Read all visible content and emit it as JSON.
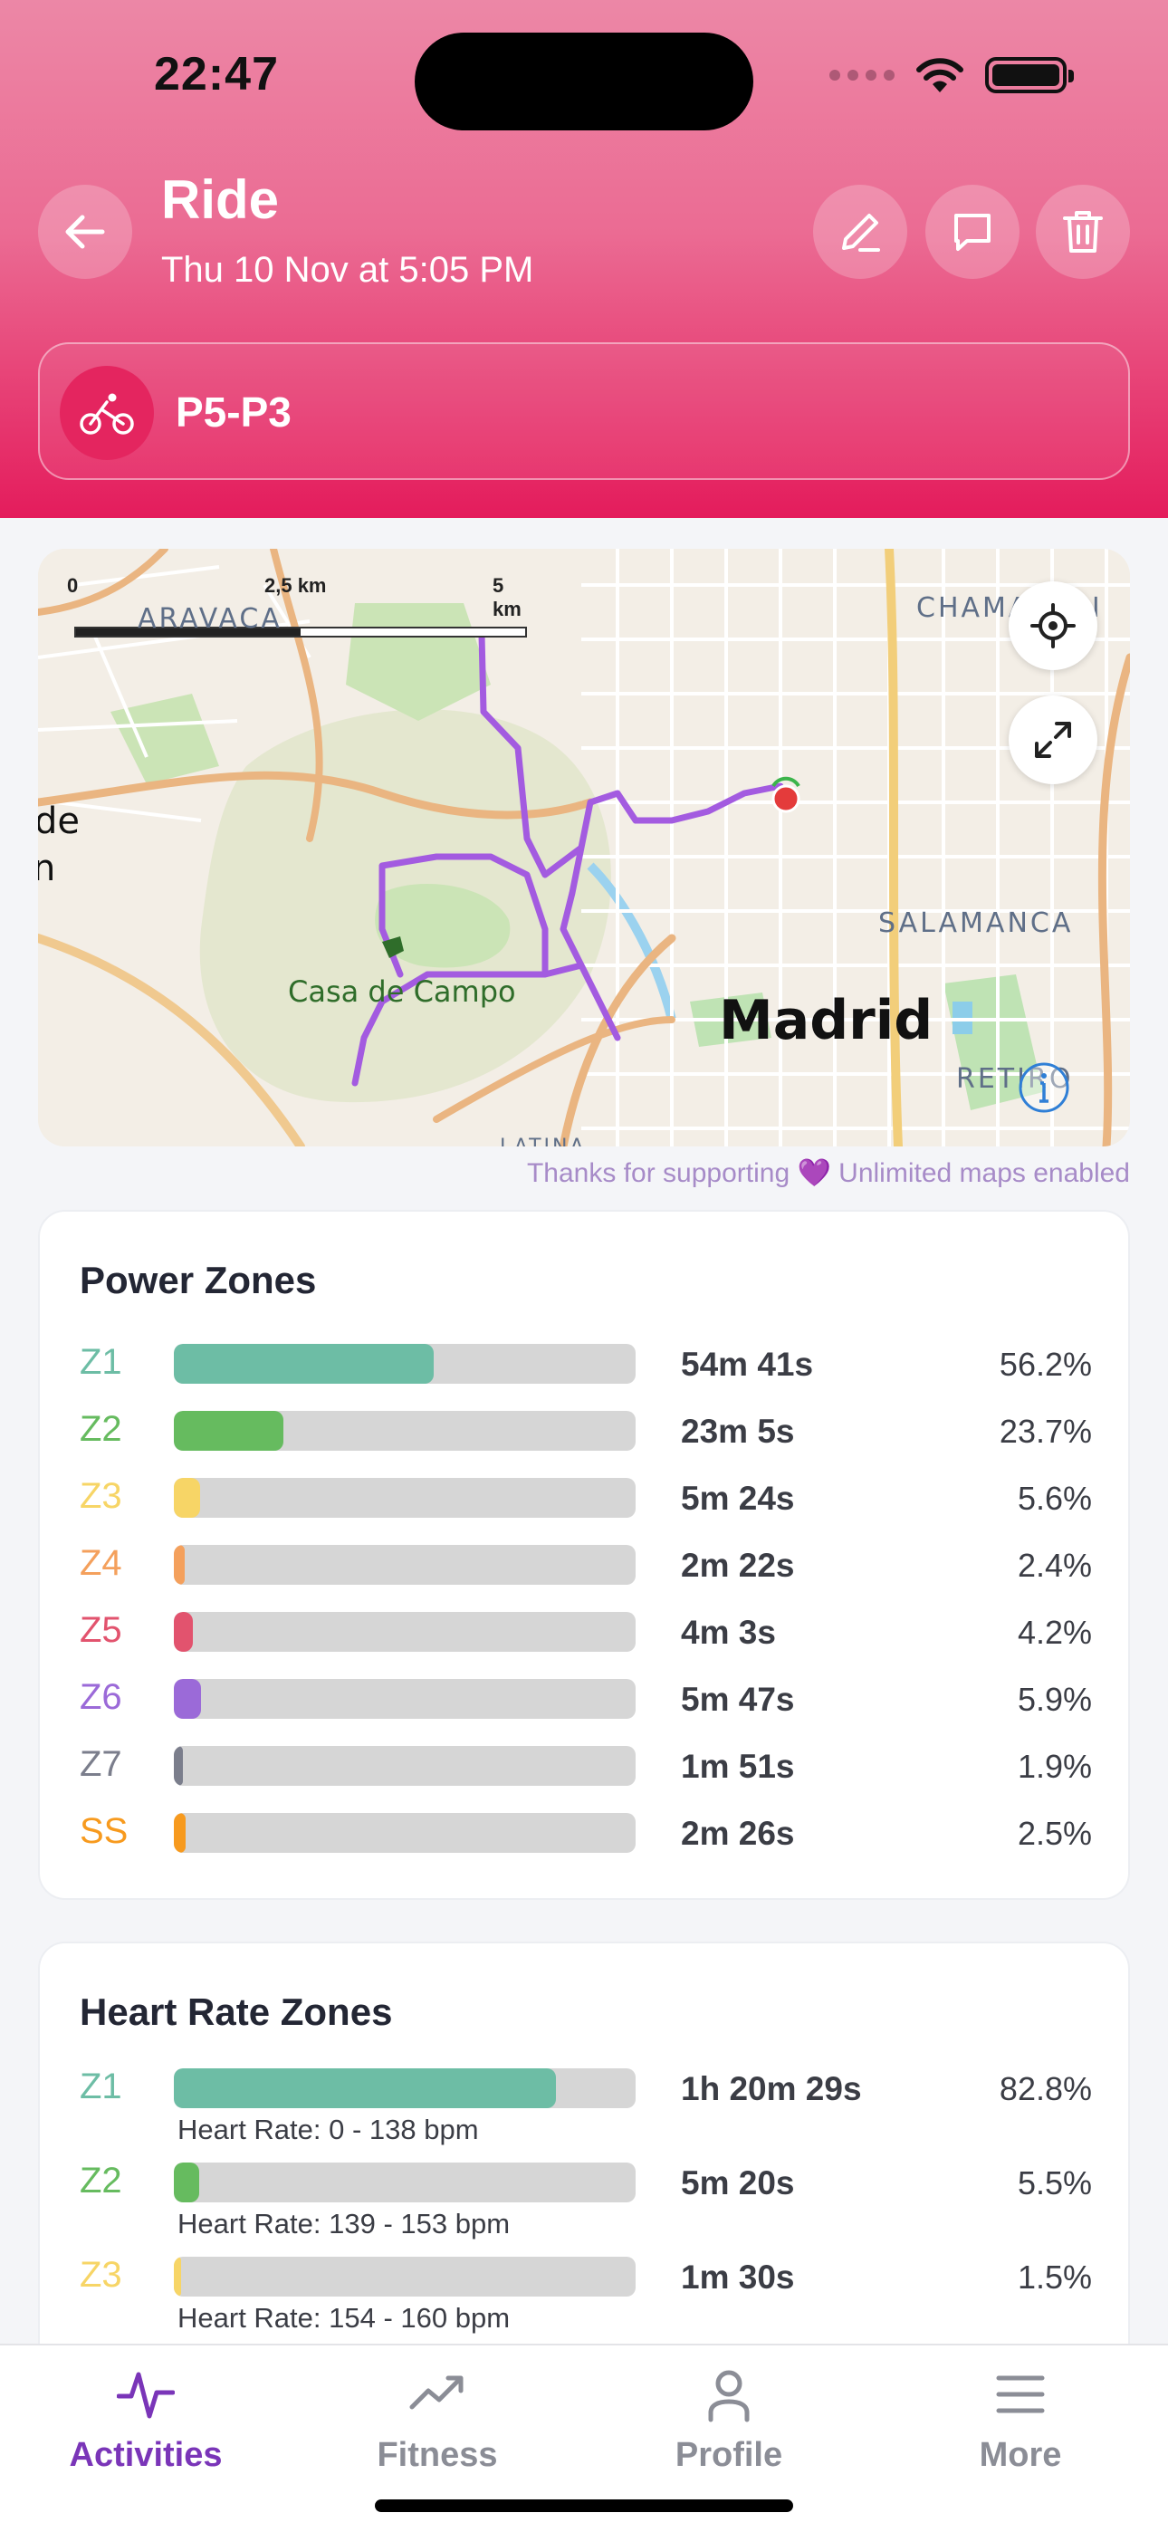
{
  "status_bar": {
    "time": "22:47"
  },
  "header": {
    "title": "Ride",
    "subtitle": "Thu 10 Nov at 5:05 PM",
    "gear_name": "P5-P3",
    "accent": "#e41c5c"
  },
  "map": {
    "scale_labels": [
      "0",
      "2,5 km",
      "5 km"
    ],
    "places": [
      "ARAVACA",
      "CHAMARTÍN",
      "Casa de Campo",
      "Madrid",
      "SALAMANCA",
      "RETIRO",
      "LATINA",
      "de",
      "n"
    ],
    "route_color": "#a35be0",
    "note": "Thanks for supporting 💜 Unlimited maps enabled"
  },
  "power_zones": {
    "title": "Power Zones",
    "zones": [
      {
        "label": "Z1",
        "time": "54m 41s",
        "pct": "56.2%",
        "fraction": 0.562,
        "color": "#6dbda5"
      },
      {
        "label": "Z2",
        "time": "23m 5s",
        "pct": "23.7%",
        "fraction": 0.237,
        "color": "#66bb5f"
      },
      {
        "label": "Z3",
        "time": "5m 24s",
        "pct": "5.6%",
        "fraction": 0.056,
        "color": "#f7d566"
      },
      {
        "label": "Z4",
        "time": "2m 22s",
        "pct": "2.4%",
        "fraction": 0.024,
        "color": "#f4a05c"
      },
      {
        "label": "Z5",
        "time": "4m 3s",
        "pct": "4.2%",
        "fraction": 0.042,
        "color": "#e2536e"
      },
      {
        "label": "Z6",
        "time": "5m 47s",
        "pct": "5.9%",
        "fraction": 0.059,
        "color": "#9b6ad8"
      },
      {
        "label": "Z7",
        "time": "1m 51s",
        "pct": "1.9%",
        "fraction": 0.019,
        "color": "#7b7e8c"
      },
      {
        "label": "SS",
        "time": "2m 26s",
        "pct": "2.5%",
        "fraction": 0.025,
        "color": "#f79a1e"
      }
    ]
  },
  "heart_rate_zones": {
    "title": "Heart Rate Zones",
    "zones": [
      {
        "label": "Z1",
        "time": "1h 20m 29s",
        "pct": "82.8%",
        "fraction": 0.828,
        "color": "#6dbda5",
        "range": "Heart Rate: 0 - 138 bpm"
      },
      {
        "label": "Z2",
        "time": "5m 20s",
        "pct": "5.5%",
        "fraction": 0.055,
        "color": "#66bb5f",
        "range": "Heart Rate: 139 - 153 bpm"
      },
      {
        "label": "Z3",
        "time": "1m 30s",
        "pct": "1.5%",
        "fraction": 0.015,
        "color": "#f7d566",
        "range": "Heart Rate: 154 - 160 bpm"
      }
    ]
  },
  "bottom_nav": {
    "items": [
      {
        "label": "Activities",
        "icon": "activity-pulse-icon",
        "active": true
      },
      {
        "label": "Fitness",
        "icon": "trending-up-icon",
        "active": false
      },
      {
        "label": "Profile",
        "icon": "person-icon",
        "active": false
      },
      {
        "label": "More",
        "icon": "menu-lines-icon",
        "active": false
      }
    ]
  }
}
